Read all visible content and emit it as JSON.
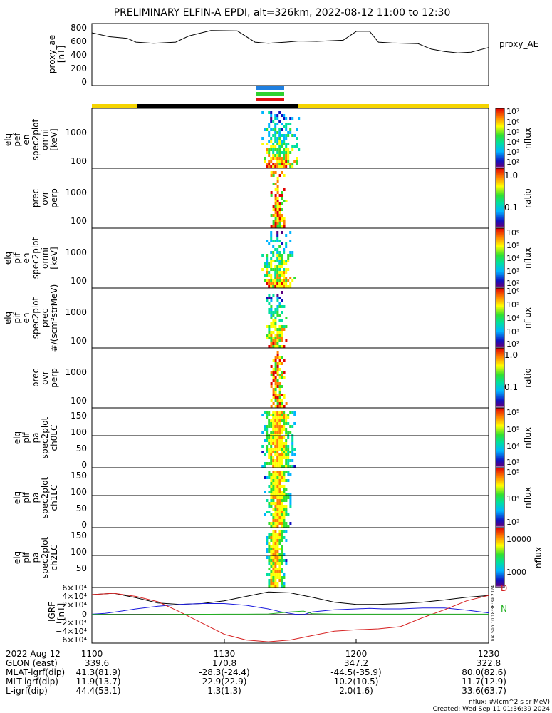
{
  "title": "PRELIMINARY ELFIN-A EPDI, alt=326km, 2022-08-12 11:00 to 12:30",
  "panels": [
    {
      "label_lines": [
        "proxy_ae",
        "[nT]"
      ],
      "right_label": "proxy_AE",
      "ticks": [
        "800",
        "600",
        "400",
        "200",
        "0"
      ]
    },
    {
      "label_lines": [
        "elq",
        "pef",
        "en",
        "spec2plot",
        "omni",
        "[keV]"
      ],
      "ticks": [
        "1000",
        "100"
      ],
      "colorbar": {
        "unit": "nflux",
        "ticks": [
          "10⁷",
          "10⁶",
          "10⁵",
          "10⁴",
          "10³",
          "10²"
        ]
      }
    },
    {
      "label_lines": [
        "prec",
        "ovr",
        "perp"
      ],
      "ticks": [
        "1000",
        "100"
      ],
      "colorbar": {
        "unit": "ratio",
        "ticks": [
          "1.0",
          "0.1"
        ]
      }
    },
    {
      "label_lines": [
        "elq",
        "pif",
        "en",
        "spec2plot",
        "omni",
        "[keV]"
      ],
      "ticks": [
        "1000",
        "100"
      ],
      "colorbar": {
        "unit": "nflux",
        "ticks": [
          "10⁶",
          "10⁵",
          "10⁴",
          "10³",
          "10²"
        ]
      }
    },
    {
      "label_lines": [
        "elq",
        "pif",
        "en",
        "spec2plot",
        "prec",
        "#/(scm²strMeV)"
      ],
      "ticks": [
        "1000",
        "100"
      ],
      "colorbar": {
        "unit": "nflux",
        "ticks": [
          "10⁶",
          "10⁵",
          "10⁴",
          "10³",
          "10²"
        ]
      }
    },
    {
      "label_lines": [
        "prec",
        "ovr",
        "perp"
      ],
      "ticks": [
        "1000",
        "100"
      ],
      "colorbar": {
        "unit": "ratio",
        "ticks": [
          "1.0",
          "0.1"
        ]
      }
    },
    {
      "label_lines": [
        "elq",
        "pif",
        "pa",
        "spec2plot",
        "ch0LC"
      ],
      "ticks": [
        "150",
        "100",
        "50",
        "0"
      ],
      "colorbar": {
        "unit": "nflux",
        "ticks": [
          "10⁵",
          "10⁵",
          "10⁴",
          "10³"
        ]
      }
    },
    {
      "label_lines": [
        "elq",
        "pif",
        "pa",
        "spec2plot",
        "ch1LC"
      ],
      "ticks": [
        "150",
        "100",
        "50",
        "0"
      ],
      "colorbar": {
        "unit": "nflux",
        "ticks": [
          "10⁵",
          "10⁴",
          "10³"
        ]
      }
    },
    {
      "label_lines": [
        "elq",
        "pif",
        "pa",
        "spec2plot",
        "ch2LC"
      ],
      "ticks": [
        "150",
        "100",
        "50"
      ],
      "colorbar": {
        "unit": "nflux",
        "ticks": [
          "10000",
          "1000"
        ]
      }
    },
    {
      "label_lines": [
        "IGRF",
        "[nT]"
      ],
      "ticks": [
        "6×10⁴",
        "4×10⁴",
        "2×10⁴",
        "0",
        "−2×10⁴",
        "−4×10⁴",
        "−6×10⁴"
      ],
      "legend": [
        "D",
        "N"
      ]
    }
  ],
  "footer": {
    "row_labels": [
      "2022 Aug 12",
      "GLON (east)",
      "MLAT-igrf(dip)",
      "MLT-igrf(dip)",
      "L-igrf(dip)"
    ],
    "columns": [
      [
        "1100",
        "339.6",
        "41.3(81.9)",
        "11.9(13.7)",
        "44.4(53.1)"
      ],
      [
        "1130",
        "170.8",
        "-28.3(-24.4)",
        "22.9(22.9)",
        "1.3(1.3)"
      ],
      [
        "1200",
        "347.2",
        "-44.5(-35.9)",
        "10.2(10.5)",
        "2.0(1.6)"
      ],
      [
        "1230",
        "322.8",
        "80.0(82.6)",
        "11.7(12.9)",
        "33.6(63.7)"
      ]
    ],
    "note": "nflux: #/(cm^2 s sr MeV)",
    "created": "Created: Wed Sep 11 01:36:39 2024",
    "side_stamp": "Tue Sep 10 18:36:39 2024"
  },
  "chart_data": {
    "type": "line",
    "title": "PRELIMINARY ELFIN-A EPDI, alt=326km, 2022-08-12 11:00 to 12:30",
    "x_ticks": [
      "1100",
      "1130",
      "1200",
      "1230"
    ],
    "xlim": [
      "11:00",
      "12:30"
    ],
    "science_zone_times": [
      "11:38",
      "11:48"
    ],
    "bars": [
      {
        "color": "#1f7fe0"
      },
      {
        "color": "#2ed12e"
      },
      {
        "color": "#e01010"
      }
    ],
    "attitude_bar": [
      {
        "from": "11:00",
        "to": "11:11",
        "color": "#f5d400"
      },
      {
        "from": "11:11",
        "to": "11:48",
        "color": "#000000"
      },
      {
        "from": "11:48",
        "to": "12:30",
        "color": "#f5d400"
      }
    ],
    "proxy_ae": {
      "ylim": [
        0,
        800
      ],
      "x": [
        "11:00",
        "11:04",
        "11:08",
        "11:10",
        "11:14",
        "11:19",
        "11:22",
        "11:27",
        "11:33",
        "11:37",
        "11:40",
        "11:44",
        "11:47",
        "11:51",
        "11:57",
        "12:00",
        "12:03",
        "12:05",
        "12:08",
        "12:14",
        "12:17",
        "12:20",
        "12:23",
        "12:26",
        "12:30"
      ],
      "y": [
        680,
        630,
        610,
        560,
        545,
        560,
        640,
        710,
        705,
        560,
        545,
        560,
        575,
        570,
        585,
        700,
        700,
        560,
        550,
        540,
        470,
        440,
        420,
        430,
        490
      ]
    },
    "spectrograms": [
      {
        "name": "elq pef en omni",
        "ylim": [
          60,
          6000
        ],
        "log": true,
        "t_range": [
          "11:38",
          "11:47"
        ],
        "cmap_range": [
          100,
          10000000
        ]
      },
      {
        "name": "prec ovr perp",
        "ylim": [
          60,
          6000
        ],
        "log": true,
        "t_range": [
          "11:40",
          "11:44"
        ],
        "cmap_range": [
          0.01,
          1
        ]
      },
      {
        "name": "elq pif en omni",
        "ylim": [
          60,
          6000
        ],
        "log": true,
        "t_range": [
          "11:38",
          "11:46"
        ],
        "cmap_range": [
          100,
          1000000
        ]
      },
      {
        "name": "elq pif en prec",
        "ylim": [
          60,
          6000
        ],
        "log": true,
        "t_range": [
          "11:39",
          "11:44"
        ],
        "cmap_range": [
          100,
          1000000
        ]
      },
      {
        "name": "prec ovr perp",
        "ylim": [
          60,
          6000
        ],
        "log": true,
        "t_range": [
          "11:40",
          "11:44"
        ],
        "cmap_range": [
          0.01,
          1
        ]
      },
      {
        "name": "elq pif pa ch0LC",
        "ylim": [
          0,
          180
        ],
        "log": false,
        "lc_line": 90,
        "t_range": [
          "11:38",
          "11:46"
        ]
      },
      {
        "name": "elq pif pa ch1LC",
        "ylim": [
          0,
          180
        ],
        "log": false,
        "lc_line": 90,
        "t_range": [
          "11:39",
          "11:45"
        ]
      },
      {
        "name": "elq pif pa ch2LC",
        "ylim": [
          0,
          180
        ],
        "log": false,
        "lc_line": 90,
        "t_range": [
          "11:39",
          "11:44"
        ]
      }
    ],
    "igrf": {
      "ylim": [
        -65000,
        60000
      ],
      "series": [
        {
          "name": "",
          "color": "#000000",
          "x": [
            "11:00",
            "11:05",
            "11:10",
            "11:15",
            "11:20",
            "11:25",
            "11:30",
            "11:35",
            "11:40",
            "11:45",
            "11:50",
            "11:55",
            "12:00",
            "12:05",
            "12:10",
            "12:15",
            "12:20",
            "12:25",
            "12:30"
          ],
          "y": [
            44000,
            47000,
            37000,
            25000,
            22000,
            24000,
            30000,
            40000,
            50000,
            48000,
            38000,
            27000,
            22000,
            22000,
            24000,
            27000,
            32000,
            38000,
            42000
          ]
        },
        {
          "name": "",
          "color": "#1a1adc",
          "x": [
            "11:00",
            "11:03",
            "11:06",
            "11:10",
            "11:15",
            "11:20",
            "11:25",
            "11:30",
            "11:35",
            "11:40",
            "11:43",
            "11:46",
            "11:48",
            "11:50",
            "11:55",
            "12:00",
            "12:03",
            "12:06",
            "12:10",
            "12:15",
            "12:20",
            "12:25",
            "12:30"
          ],
          "y": [
            0,
            2000,
            6000,
            12000,
            18000,
            22000,
            24000,
            24000,
            20000,
            12000,
            5000,
            0,
            -1000,
            5000,
            10000,
            12000,
            13000,
            12000,
            12000,
            14000,
            14000,
            9000,
            3000
          ]
        },
        {
          "name": "D",
          "color": "#d62020",
          "x": [
            "11:00",
            "11:05",
            "11:10",
            "11:15",
            "11:20",
            "11:25",
            "11:30",
            "11:35",
            "11:40",
            "11:45",
            "11:50",
            "11:55",
            "12:00",
            "12:05",
            "12:10",
            "12:15",
            "12:20",
            "12:25",
            "12:30"
          ],
          "y": [
            44000,
            47000,
            40000,
            28000,
            5000,
            -20000,
            -45000,
            -58000,
            -62000,
            -58000,
            -48000,
            -38000,
            -35000,
            -33000,
            -28000,
            -8000,
            10000,
            30000,
            42000
          ]
        },
        {
          "name": "N",
          "color": "#22b022",
          "x": [
            "11:00",
            "11:10",
            "11:20",
            "11:30",
            "11:35",
            "11:40",
            "11:45",
            "11:48",
            "11:50",
            "11:55",
            "12:00",
            "12:10",
            "12:20",
            "12:30"
          ],
          "y": [
            -500,
            -1000,
            -500,
            0,
            0,
            500,
            5000,
            7000,
            1000,
            0,
            0,
            0,
            0,
            0
          ]
        }
      ]
    }
  }
}
